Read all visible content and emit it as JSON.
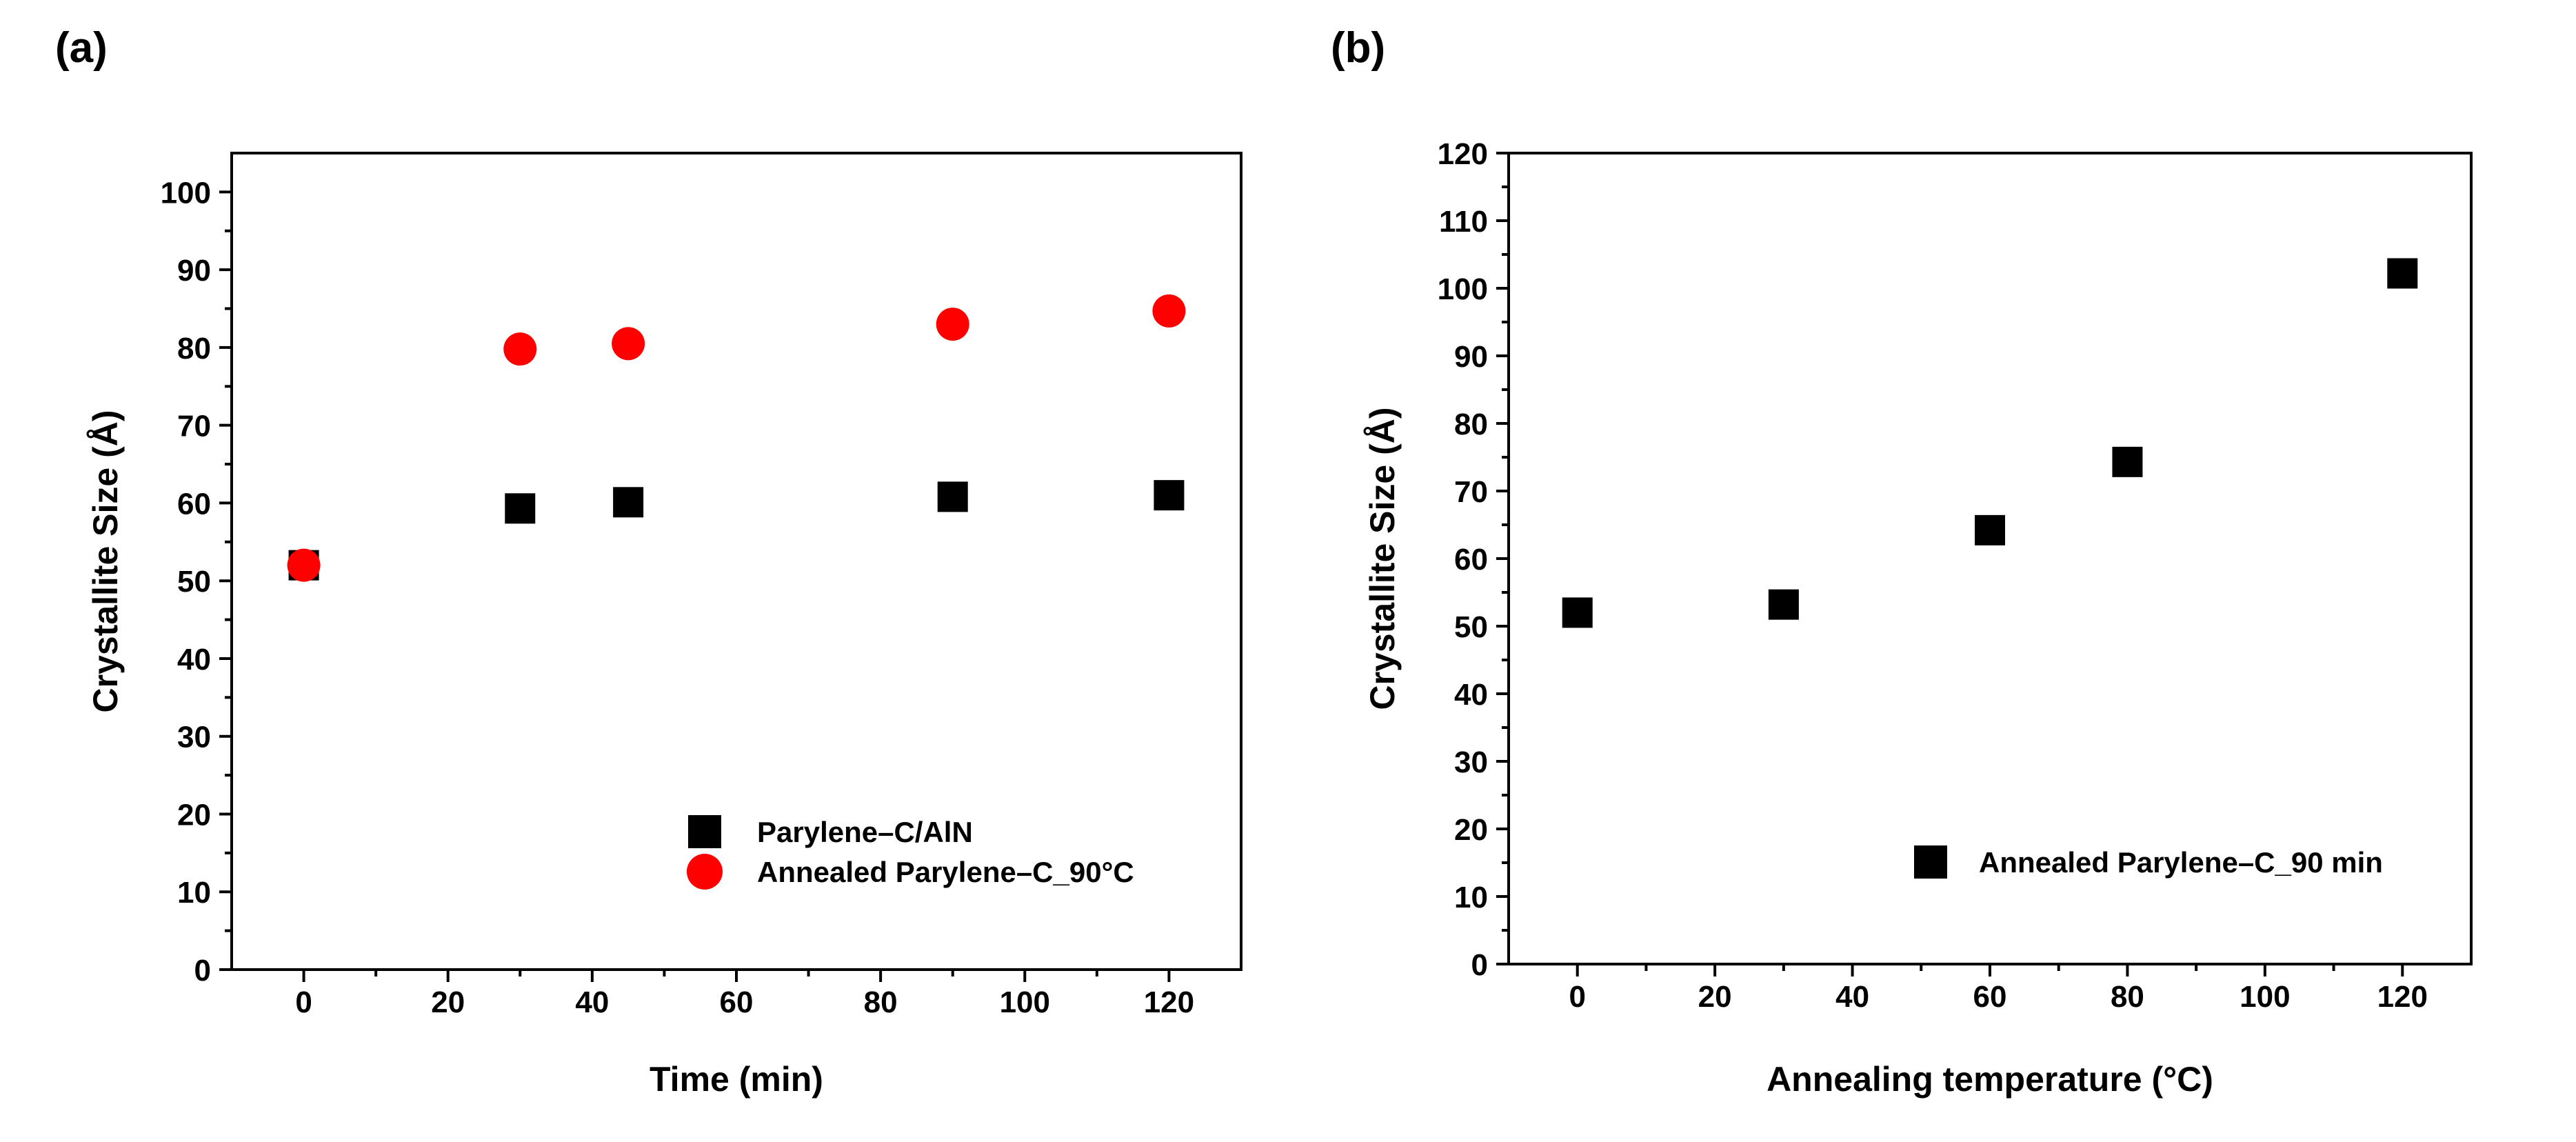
{
  "chart_data": [
    {
      "type": "scatter",
      "panel_label": "(a)",
      "xlabel": "Time (min)",
      "ylabel": "Crystallite Size (Å)",
      "xlim": [
        -10,
        130
      ],
      "ylim": [
        0,
        105
      ],
      "xticks": [
        0,
        20,
        40,
        60,
        80,
        100,
        120
      ],
      "yticks": [
        0,
        10,
        20,
        30,
        40,
        50,
        60,
        70,
        80,
        90,
        100
      ],
      "grid": false,
      "legend_position": "bottom-right",
      "series": [
        {
          "name": "Parylene–C/AlN",
          "marker": "square",
          "color": "#000000",
          "x": [
            0,
            30,
            45,
            90,
            120
          ],
          "y": [
            52,
            59.3,
            60.1,
            60.8,
            61
          ]
        },
        {
          "name": "Annealed Parylene–C_90°C",
          "marker": "circle",
          "color": "#ff0000",
          "x": [
            0,
            30,
            45,
            90,
            120
          ],
          "y": [
            52,
            79.8,
            80.5,
            83,
            84.7
          ]
        }
      ]
    },
    {
      "type": "scatter",
      "panel_label": "(b)",
      "xlabel": "Annealing temperature (°C)",
      "ylabel": "Crystallite Size (Å)",
      "xlim": [
        -10,
        130
      ],
      "ylim": [
        0,
        120
      ],
      "xticks": [
        0,
        20,
        40,
        60,
        80,
        100,
        120
      ],
      "yticks": [
        0,
        10,
        20,
        30,
        40,
        50,
        60,
        70,
        80,
        90,
        100,
        110,
        120
      ],
      "grid": false,
      "legend_position": "bottom-right",
      "series": [
        {
          "name": "Annealed Parylene–C_90 min",
          "marker": "square",
          "color": "#000000",
          "x": [
            0,
            30,
            60,
            80,
            120
          ],
          "y": [
            52,
            53.2,
            64.2,
            74.3,
            102.2
          ]
        }
      ]
    }
  ]
}
